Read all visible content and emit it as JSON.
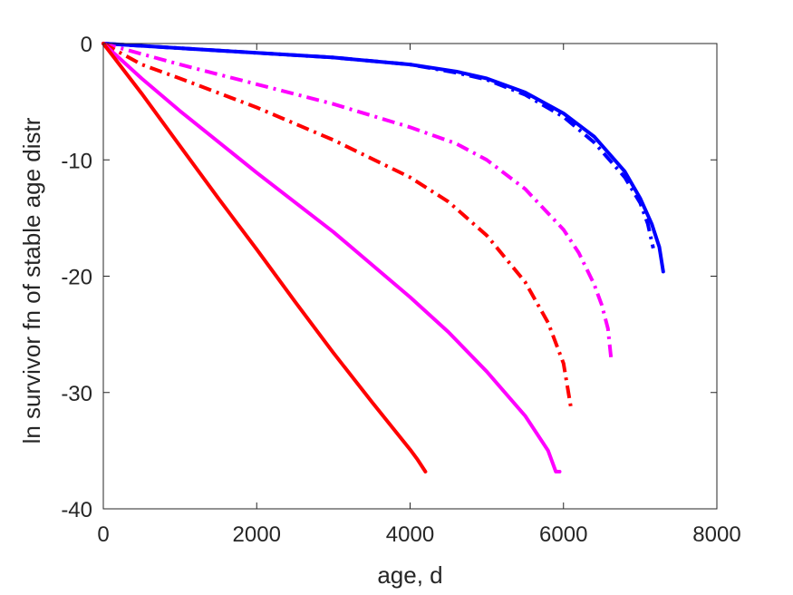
{
  "chart_data": {
    "type": "line",
    "title": "",
    "xlabel": "age, d",
    "ylabel": "ln survivor fn of stable age distr",
    "xlim": [
      0,
      8000
    ],
    "ylim": [
      -40,
      0
    ],
    "x_ticks": [
      0,
      2000,
      4000,
      6000,
      8000
    ],
    "y_ticks": [
      0,
      -10,
      -20,
      -30,
      -40
    ],
    "x_tick_labels": [
      "0",
      "2000",
      "4000",
      "6000",
      "8000"
    ],
    "y_tick_labels": [
      "0",
      "-10",
      "-20",
      "-30",
      "-40"
    ],
    "grid": false,
    "legend": "none",
    "series": [
      {
        "color": "#0000ff",
        "style": "solid",
        "x": [
          0,
          1000,
          2000,
          3000,
          4000,
          4600,
          5000,
          5500,
          6000,
          6400,
          6800,
          7000,
          7150,
          7250,
          7300
        ],
        "y": [
          0,
          -0.4,
          -0.8,
          -1.2,
          -1.8,
          -2.4,
          -3.0,
          -4.2,
          -6.0,
          -8.0,
          -11.0,
          -13.3,
          -15.5,
          -17.5,
          -19.6
        ]
      },
      {
        "color": "#0000ff",
        "style": "dashdot",
        "x": [
          0,
          1000,
          2000,
          3000,
          4000,
          4600,
          5000,
          5500,
          6000,
          6400,
          6800,
          7000,
          7100,
          7170
        ],
        "y": [
          0,
          -0.4,
          -0.8,
          -1.2,
          -1.8,
          -2.5,
          -3.1,
          -4.4,
          -6.3,
          -8.5,
          -11.5,
          -13.7,
          -15.5,
          -17.6
        ]
      },
      {
        "color": "#ff00ff",
        "style": "dashdot",
        "x": [
          0,
          500,
          1000,
          2000,
          3000,
          4000,
          4600,
          5000,
          5500,
          6000,
          6200,
          6400,
          6500,
          6580,
          6620
        ],
        "y": [
          0,
          -0.9,
          -1.8,
          -3.5,
          -5.2,
          -7.2,
          -8.6,
          -10.0,
          -12.5,
          -16.0,
          -18.0,
          -20.7,
          -22.5,
          -24.5,
          -27.0
        ]
      },
      {
        "color": "#ff0000",
        "style": "dashdot",
        "x": [
          0,
          500,
          1000,
          2000,
          3000,
          4000,
          4500,
          5000,
          5500,
          5800,
          6000,
          6100
        ],
        "y": [
          0,
          -1.8,
          -3.0,
          -5.5,
          -8.3,
          -11.5,
          -13.6,
          -16.5,
          -20.5,
          -24.0,
          -27.5,
          -31.4
        ]
      },
      {
        "color": "#ff00ff",
        "style": "solid",
        "x": [
          0,
          500,
          1000,
          2000,
          3000,
          4000,
          4500,
          5000,
          5500,
          5800,
          5900,
          5950
        ],
        "y": [
          0,
          -3.0,
          -5.8,
          -11.1,
          -16.2,
          -21.8,
          -24.8,
          -28.2,
          -32.0,
          -35.0,
          -36.8,
          -36.8
        ]
      },
      {
        "color": "#ff0000",
        "style": "solid",
        "x": [
          0,
          500,
          1000,
          1500,
          2000,
          2500,
          3000,
          3500,
          4000,
          4100,
          4200
        ],
        "y": [
          0,
          -4.3,
          -8.8,
          -13.3,
          -17.7,
          -22.2,
          -26.6,
          -30.8,
          -34.9,
          -35.8,
          -36.8
        ]
      }
    ]
  }
}
